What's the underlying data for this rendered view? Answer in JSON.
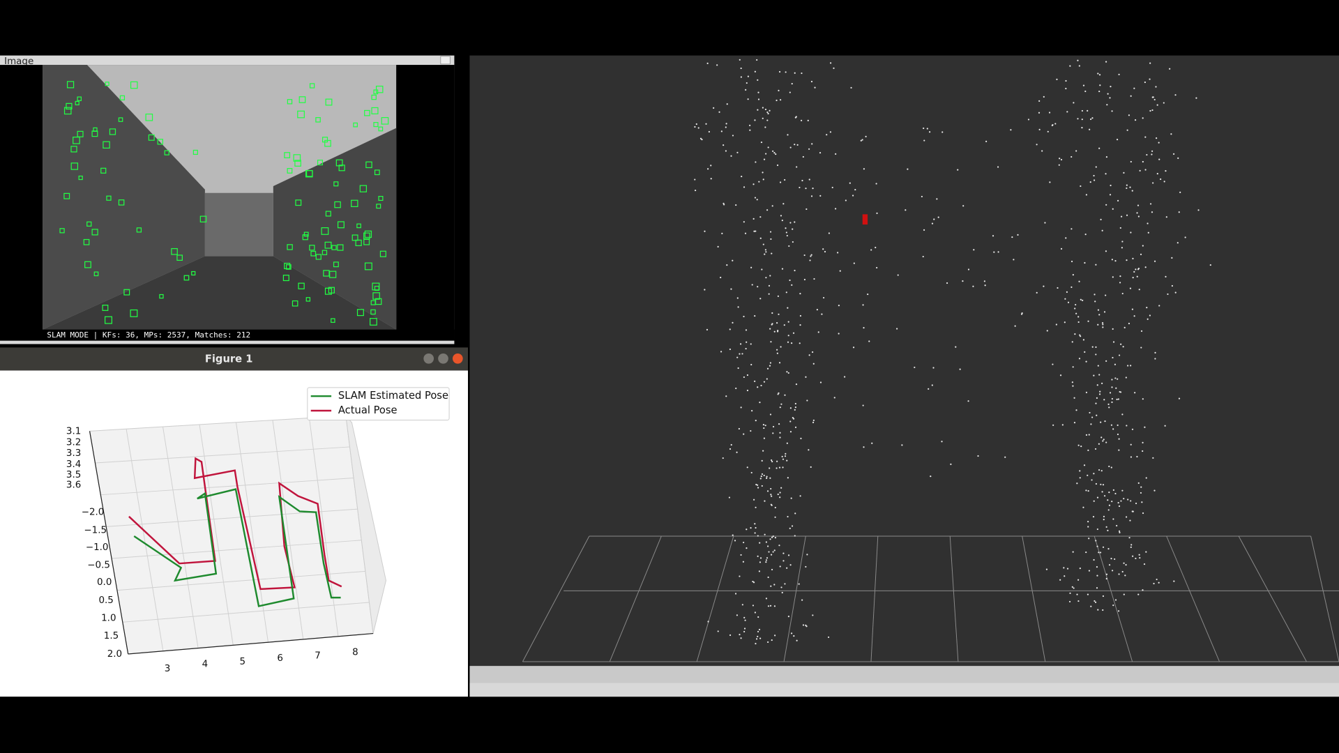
{
  "image_window": {
    "title": "Image",
    "status": "SLAM MODE | KFs: 36, MPs: 2537, Matches: 212"
  },
  "figure_window": {
    "title": "Figure 1",
    "legend": [
      "SLAM Estimated Pose",
      "Actual Pose"
    ],
    "z_ticks": [
      "3.1",
      "3.2",
      "3.3",
      "3.4",
      "3.5",
      "3.6"
    ],
    "y_ticks": [
      "−2.0",
      "−1.5",
      "−1.0",
      "−0.5",
      "0.0",
      "0.5",
      "1.0",
      "1.5",
      "2.0"
    ],
    "x_ticks": [
      "3",
      "4",
      "5",
      "6",
      "7",
      "8"
    ]
  }
}
